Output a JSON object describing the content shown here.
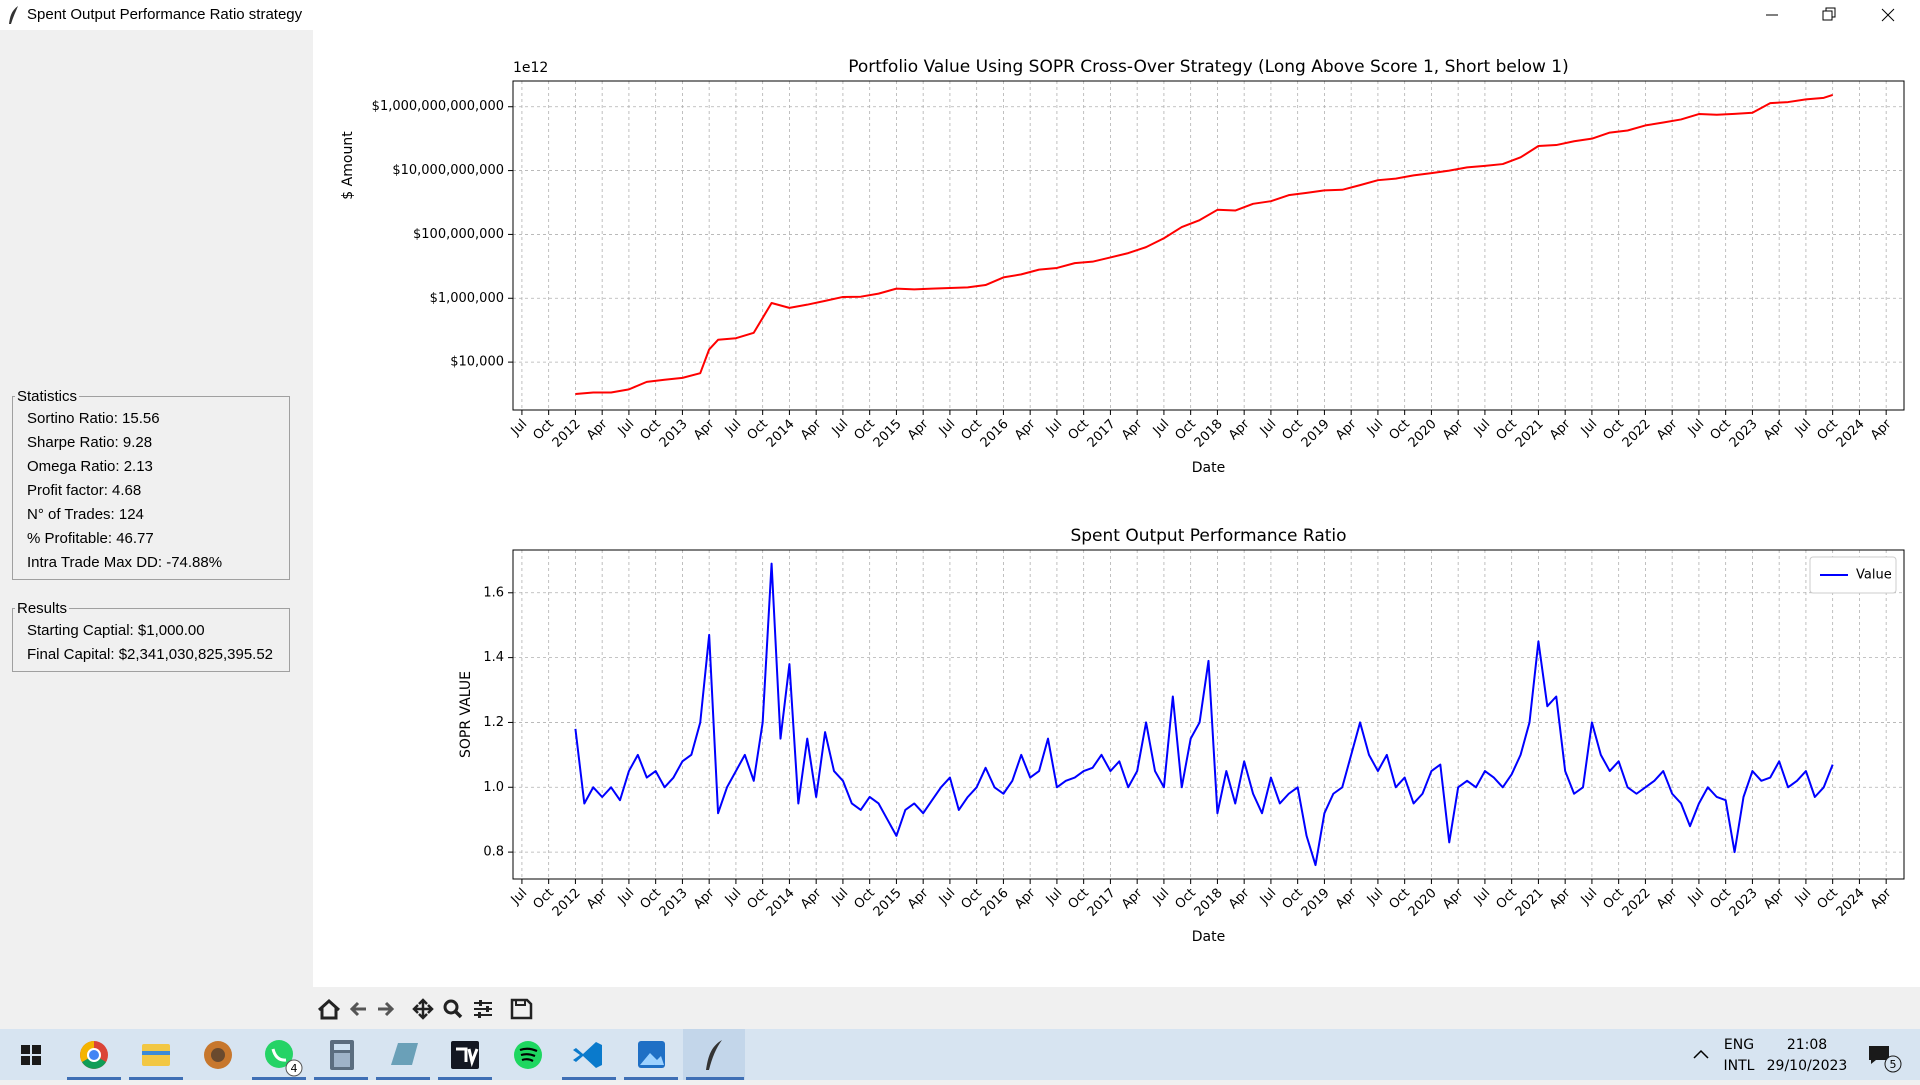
{
  "window": {
    "title": "Spent Output Performance Ratio strategy"
  },
  "statistics": {
    "title": "Statistics",
    "items": [
      "Sortino Ratio: 15.56",
      "Sharpe Ratio: 9.28",
      "Omega Ratio: 2.13",
      "Profit factor: 4.68",
      "N° of Trades: 124",
      "% Profitable: 46.77",
      "Intra Trade Max DD: -74.88%"
    ]
  },
  "results": {
    "title": "Results",
    "items": [
      "Starting Captial: $1,000.00",
      "Final Capital: $2,341,030,825,395.52"
    ]
  },
  "taskbar": {
    "language": "ENG",
    "layout": "INTL",
    "time": "21:08",
    "date": "29/10/2023",
    "notifications": "5",
    "whatsapp_badge": "4"
  },
  "chart_data": [
    {
      "type": "line",
      "title": "Portfolio Value Using SOPR Cross-Over Strategy (Long Above Score 1, Short below 1)",
      "offset_label": "1e12",
      "xlabel": "Date",
      "ylabel": "$ Amount",
      "log_y": true,
      "grid": true,
      "color": "#ff0000",
      "xlim": [
        "2011-06",
        "2024-06"
      ],
      "ylim": [
        316,
        6400000000000.0
      ],
      "yticks": [
        {
          "value": 10000,
          "label": "$10,000"
        },
        {
          "value": 1000000.0,
          "label": "$1,000,000"
        },
        {
          "value": 100000000.0,
          "label": "$100,000,000"
        },
        {
          "value": 10000000000.0,
          "label": "$10,000,000,000"
        },
        {
          "value": 1000000000000.0,
          "label": "$1,000,000,000,000"
        }
      ],
      "xticks": [
        {
          "value": "2011-07",
          "label": "Jul"
        },
        {
          "value": "2011-10",
          "label": "Oct"
        },
        {
          "value": "2012-01",
          "label": "2012"
        },
        {
          "value": "2012-04",
          "label": "Apr"
        },
        {
          "value": "2012-07",
          "label": "Jul"
        },
        {
          "value": "2012-10",
          "label": "Oct"
        },
        {
          "value": "2013-01",
          "label": "2013"
        },
        {
          "value": "2013-04",
          "label": "Apr"
        },
        {
          "value": "2013-07",
          "label": "Jul"
        },
        {
          "value": "2013-10",
          "label": "Oct"
        },
        {
          "value": "2014-01",
          "label": "2014"
        },
        {
          "value": "2014-04",
          "label": "Apr"
        },
        {
          "value": "2014-07",
          "label": "Jul"
        },
        {
          "value": "2014-10",
          "label": "Oct"
        },
        {
          "value": "2015-01",
          "label": "2015"
        },
        {
          "value": "2015-04",
          "label": "Apr"
        },
        {
          "value": "2015-07",
          "label": "Jul"
        },
        {
          "value": "2015-10",
          "label": "Oct"
        },
        {
          "value": "2016-01",
          "label": "2016"
        },
        {
          "value": "2016-04",
          "label": "Apr"
        },
        {
          "value": "2016-07",
          "label": "Jul"
        },
        {
          "value": "2016-10",
          "label": "Oct"
        },
        {
          "value": "2017-01",
          "label": "2017"
        },
        {
          "value": "2017-04",
          "label": "Apr"
        },
        {
          "value": "2017-07",
          "label": "Jul"
        },
        {
          "value": "2017-10",
          "label": "Oct"
        },
        {
          "value": "2018-01",
          "label": "2018"
        },
        {
          "value": "2018-04",
          "label": "Apr"
        },
        {
          "value": "2018-07",
          "label": "Jul"
        },
        {
          "value": "2018-10",
          "label": "Oct"
        },
        {
          "value": "2019-01",
          "label": "2019"
        },
        {
          "value": "2019-04",
          "label": "Apr"
        },
        {
          "value": "2019-07",
          "label": "Jul"
        },
        {
          "value": "2019-10",
          "label": "Oct"
        },
        {
          "value": "2020-01",
          "label": "2020"
        },
        {
          "value": "2020-04",
          "label": "Apr"
        },
        {
          "value": "2020-07",
          "label": "Jul"
        },
        {
          "value": "2020-10",
          "label": "Oct"
        },
        {
          "value": "2021-01",
          "label": "2021"
        },
        {
          "value": "2021-04",
          "label": "Apr"
        },
        {
          "value": "2021-07",
          "label": "Jul"
        },
        {
          "value": "2021-10",
          "label": "Oct"
        },
        {
          "value": "2022-01",
          "label": "2022"
        },
        {
          "value": "2022-04",
          "label": "Apr"
        },
        {
          "value": "2022-07",
          "label": "Jul"
        },
        {
          "value": "2022-10",
          "label": "Oct"
        },
        {
          "value": "2023-01",
          "label": "2023"
        },
        {
          "value": "2023-04",
          "label": "Apr"
        },
        {
          "value": "2023-07",
          "label": "Jul"
        },
        {
          "value": "2023-10",
          "label": "Oct"
        },
        {
          "value": "2024-01",
          "label": "2024"
        },
        {
          "value": "2024-04",
          "label": "Apr"
        }
      ],
      "x": [
        "2012-01",
        "2012-03",
        "2012-05",
        "2012-07",
        "2012-09",
        "2012-11",
        "2013-01",
        "2013-03",
        "2013-04",
        "2013-05",
        "2013-07",
        "2013-09",
        "2013-11",
        "2014-01",
        "2014-03",
        "2014-05",
        "2014-07",
        "2014-09",
        "2014-11",
        "2015-01",
        "2015-03",
        "2015-05",
        "2015-07",
        "2015-09",
        "2015-11",
        "2016-01",
        "2016-03",
        "2016-05",
        "2016-07",
        "2016-09",
        "2016-11",
        "2017-01",
        "2017-03",
        "2017-05",
        "2017-07",
        "2017-09",
        "2017-11",
        "2018-01",
        "2018-03",
        "2018-05",
        "2018-07",
        "2018-09",
        "2018-11",
        "2019-01",
        "2019-03",
        "2019-05",
        "2019-07",
        "2019-09",
        "2019-11",
        "2020-01",
        "2020-03",
        "2020-05",
        "2020-07",
        "2020-09",
        "2020-11",
        "2021-01",
        "2021-03",
        "2021-05",
        "2021-07",
        "2021-09",
        "2021-11",
        "2022-01",
        "2022-03",
        "2022-05",
        "2022-07",
        "2022-09",
        "2022-11",
        "2023-01",
        "2023-03",
        "2023-05",
        "2023-07",
        "2023-09",
        "2023-10"
      ],
      "values": [
        1000,
        1120,
        1120,
        1400,
        2400,
        2800,
        3200,
        4500,
        25000,
        50000,
        56000,
        83000,
        710000,
        500000,
        630000,
        830000,
        1100000.0,
        1120000.0,
        1400000.0,
        2000000.0,
        1900000.0,
        2000000.0,
        2100000.0,
        2200000.0,
        2600000.0,
        4500000.0,
        5600000.0,
        7900000.0,
        8900000.0,
        12600000.0,
        14000000.0,
        19000000.0,
        26000000.0,
        40000000.0,
        76000000.0,
        170000000.0,
        280000000.0,
        590000000.0,
        560000000.0,
        910000000.0,
        1100000000.0,
        1700000000.0,
        2000000000.0,
        2400000000.0,
        2500000000.0,
        3500000000.0,
        5000000000.0,
        5600000000.0,
        7100000000.0,
        8300000000.0,
        10000000000.0,
        12600000000.0,
        14000000000.0,
        16000000000.0,
        26000000000.0,
        59000000000.0,
        63000000000.0,
        83000000000.0,
        100000000000.0,
        155000000000.0,
        180000000000.0,
        260000000000.0,
        320000000000.0,
        400000000000.0,
        590000000000.0,
        560000000000.0,
        600000000000.0,
        650000000000.0,
        1300000000000.0,
        1400000000000.0,
        1700000000000.0,
        1900000000000.0,
        2340000000000.0
      ]
    },
    {
      "type": "line",
      "title": "Spent Output Performance Ratio",
      "xlabel": "Date",
      "ylabel": "SOPR VALUE",
      "log_y": false,
      "grid": true,
      "legend": "upper right",
      "xlim": [
        "2011-06",
        "2024-06"
      ],
      "ylim": [
        0.717,
        1.732
      ],
      "yticks": [
        0.8,
        {
          "value": 1,
          "label": "1.0"
        },
        1.2,
        1.4,
        1.6
      ],
      "xticks": [
        {
          "value": "2011-07",
          "label": "Jul"
        },
        {
          "value": "2011-10",
          "label": "Oct"
        },
        {
          "value": "2012-01",
          "label": "2012"
        },
        {
          "value": "2012-04",
          "label": "Apr"
        },
        {
          "value": "2012-07",
          "label": "Jul"
        },
        {
          "value": "2012-10",
          "label": "Oct"
        },
        {
          "value": "2013-01",
          "label": "2013"
        },
        {
          "value": "2013-04",
          "label": "Apr"
        },
        {
          "value": "2013-07",
          "label": "Jul"
        },
        {
          "value": "2013-10",
          "label": "Oct"
        },
        {
          "value": "2014-01",
          "label": "2014"
        },
        {
          "value": "2014-04",
          "label": "Apr"
        },
        {
          "value": "2014-07",
          "label": "Jul"
        },
        {
          "value": "2014-10",
          "label": "Oct"
        },
        {
          "value": "2015-01",
          "label": "2015"
        },
        {
          "value": "2015-04",
          "label": "Apr"
        },
        {
          "value": "2015-07",
          "label": "Jul"
        },
        {
          "value": "2015-10",
          "label": "Oct"
        },
        {
          "value": "2016-01",
          "label": "2016"
        },
        {
          "value": "2016-04",
          "label": "Apr"
        },
        {
          "value": "2016-07",
          "label": "Jul"
        },
        {
          "value": "2016-10",
          "label": "Oct"
        },
        {
          "value": "2017-01",
          "label": "2017"
        },
        {
          "value": "2017-04",
          "label": "Apr"
        },
        {
          "value": "2017-07",
          "label": "Jul"
        },
        {
          "value": "2017-10",
          "label": "Oct"
        },
        {
          "value": "2018-01",
          "label": "2018"
        },
        {
          "value": "2018-04",
          "label": "Apr"
        },
        {
          "value": "2018-07",
          "label": "Jul"
        },
        {
          "value": "2018-10",
          "label": "Oct"
        },
        {
          "value": "2019-01",
          "label": "2019"
        },
        {
          "value": "2019-04",
          "label": "Apr"
        },
        {
          "value": "2019-07",
          "label": "Jul"
        },
        {
          "value": "2019-10",
          "label": "Oct"
        },
        {
          "value": "2020-01",
          "label": "2020"
        },
        {
          "value": "2020-04",
          "label": "Apr"
        },
        {
          "value": "2020-07",
          "label": "Jul"
        },
        {
          "value": "2020-10",
          "label": "Oct"
        },
        {
          "value": "2021-01",
          "label": "2021"
        },
        {
          "value": "2021-04",
          "label": "Apr"
        },
        {
          "value": "2021-07",
          "label": "Jul"
        },
        {
          "value": "2021-10",
          "label": "Oct"
        },
        {
          "value": "2022-01",
          "label": "2022"
        },
        {
          "value": "2022-04",
          "label": "Apr"
        },
        {
          "value": "2022-07",
          "label": "Jul"
        },
        {
          "value": "2022-10",
          "label": "Oct"
        },
        {
          "value": "2023-01",
          "label": "2023"
        },
        {
          "value": "2023-04",
          "label": "Apr"
        },
        {
          "value": "2023-07",
          "label": "Jul"
        },
        {
          "value": "2023-10",
          "label": "Oct"
        },
        {
          "value": "2024-01",
          "label": "2024"
        },
        {
          "value": "2024-04",
          "label": "Apr"
        }
      ],
      "x": [
        "2012-01",
        "2012-02",
        "2012-03",
        "2012-04",
        "2012-05",
        "2012-06",
        "2012-07",
        "2012-08",
        "2012-09",
        "2012-10",
        "2012-11",
        "2012-12",
        "2013-01",
        "2013-02",
        "2013-03",
        "2013-04",
        "2013-05",
        "2013-06",
        "2013-07",
        "2013-08",
        "2013-09",
        "2013-10",
        "2013-11",
        "2013-12",
        "2014-01",
        "2014-02",
        "2014-03",
        "2014-04",
        "2014-05",
        "2014-06",
        "2014-07",
        "2014-08",
        "2014-09",
        "2014-10",
        "2014-11",
        "2014-12",
        "2015-01",
        "2015-02",
        "2015-03",
        "2015-04",
        "2015-05",
        "2015-06",
        "2015-07",
        "2015-08",
        "2015-09",
        "2015-10",
        "2015-11",
        "2015-12",
        "2016-01",
        "2016-02",
        "2016-03",
        "2016-04",
        "2016-05",
        "2016-06",
        "2016-07",
        "2016-08",
        "2016-09",
        "2016-10",
        "2016-11",
        "2016-12",
        "2017-01",
        "2017-02",
        "2017-03",
        "2017-04",
        "2017-05",
        "2017-06",
        "2017-07",
        "2017-08",
        "2017-09",
        "2017-10",
        "2017-11",
        "2017-12",
        "2018-01",
        "2018-02",
        "2018-03",
        "2018-04",
        "2018-05",
        "2018-06",
        "2018-07",
        "2018-08",
        "2018-09",
        "2018-10",
        "2018-11",
        "2018-12",
        "2019-01",
        "2019-02",
        "2019-03",
        "2019-04",
        "2019-05",
        "2019-06",
        "2019-07",
        "2019-08",
        "2019-09",
        "2019-10",
        "2019-11",
        "2019-12",
        "2020-01",
        "2020-02",
        "2020-03",
        "2020-04",
        "2020-05",
        "2020-06",
        "2020-07",
        "2020-08",
        "2020-09",
        "2020-10",
        "2020-11",
        "2020-12",
        "2021-01",
        "2021-02",
        "2021-03",
        "2021-04",
        "2021-05",
        "2021-06",
        "2021-07",
        "2021-08",
        "2021-09",
        "2021-10",
        "2021-11",
        "2021-12",
        "2022-01",
        "2022-02",
        "2022-03",
        "2022-04",
        "2022-05",
        "2022-06",
        "2022-07",
        "2022-08",
        "2022-09",
        "2022-10",
        "2022-11",
        "2022-12",
        "2023-01",
        "2023-02",
        "2023-03",
        "2023-04",
        "2023-05",
        "2023-06",
        "2023-07",
        "2023-08",
        "2023-09",
        "2023-10"
      ],
      "series": [
        {
          "name": "Value",
          "color": "#0000ff",
          "values": [
            1.18,
            0.95,
            1.0,
            0.97,
            1.0,
            0.96,
            1.05,
            1.1,
            1.03,
            1.05,
            1.0,
            1.03,
            1.08,
            1.1,
            1.2,
            1.47,
            0.92,
            1.0,
            1.05,
            1.1,
            1.02,
            1.2,
            1.69,
            1.15,
            1.38,
            0.95,
            1.15,
            0.97,
            1.17,
            1.05,
            1.02,
            0.95,
            0.93,
            0.97,
            0.95,
            0.9,
            0.85,
            0.93,
            0.95,
            0.92,
            0.96,
            1.0,
            1.03,
            0.93,
            0.97,
            1.0,
            1.06,
            1.0,
            0.98,
            1.02,
            1.1,
            1.03,
            1.05,
            1.15,
            1.0,
            1.02,
            1.03,
            1.05,
            1.06,
            1.1,
            1.05,
            1.08,
            1.0,
            1.05,
            1.2,
            1.05,
            1.0,
            1.28,
            1.0,
            1.15,
            1.2,
            1.39,
            0.92,
            1.05,
            0.95,
            1.08,
            0.98,
            0.92,
            1.03,
            0.95,
            0.98,
            1.0,
            0.85,
            0.76,
            0.92,
            0.98,
            1.0,
            1.1,
            1.2,
            1.1,
            1.05,
            1.1,
            1.0,
            1.03,
            0.95,
            0.98,
            1.05,
            1.07,
            0.83,
            1.0,
            1.02,
            1.0,
            1.05,
            1.03,
            1.0,
            1.04,
            1.1,
            1.2,
            1.45,
            1.25,
            1.28,
            1.05,
            0.98,
            1.0,
            1.2,
            1.1,
            1.05,
            1.08,
            1.0,
            0.98,
            1.0,
            1.02,
            1.05,
            0.98,
            0.95,
            0.88,
            0.95,
            1.0,
            0.97,
            0.96,
            0.8,
            0.97,
            1.05,
            1.02,
            1.03,
            1.08,
            1.0,
            1.02,
            1.05,
            0.97,
            1.0,
            1.07
          ]
        }
      ]
    }
  ]
}
